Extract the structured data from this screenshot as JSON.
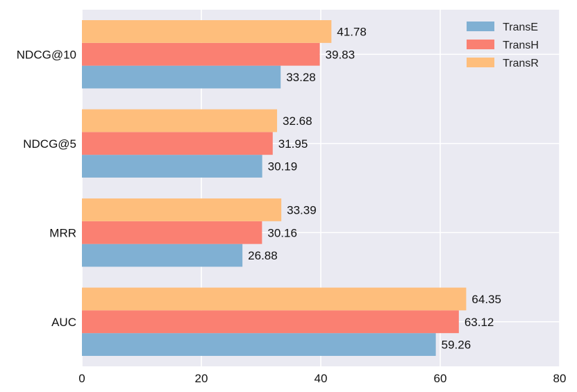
{
  "chart_data": {
    "type": "bar",
    "orientation": "horizontal",
    "categories": [
      "NDCG@10",
      "NDCG@5",
      "MRR",
      "AUC"
    ],
    "series": [
      {
        "name": "TransE",
        "values": [
          33.28,
          30.19,
          26.88,
          59.26
        ],
        "color": "#80b0d3",
        "labels": [
          "33.28",
          "30.19",
          "26.88",
          "59.26"
        ]
      },
      {
        "name": "TransH",
        "values": [
          39.83,
          31.95,
          30.16,
          63.12
        ],
        "color": "#fa8072",
        "labels": [
          "39.83",
          "31.95",
          "30.16",
          "63.12"
        ]
      },
      {
        "name": "TransR",
        "values": [
          41.78,
          32.68,
          33.39,
          64.35
        ],
        "color": "#febe7c",
        "labels": [
          "41.78",
          "32.68",
          "33.39",
          "64.35"
        ]
      }
    ],
    "xlim": [
      0,
      80
    ],
    "xticks": [
      "0",
      "20",
      "40",
      "60",
      "80"
    ],
    "title": "",
    "xlabel": "",
    "ylabel": "",
    "grid": true,
    "legend_position": "top-right",
    "background": "#eaeaf2"
  }
}
